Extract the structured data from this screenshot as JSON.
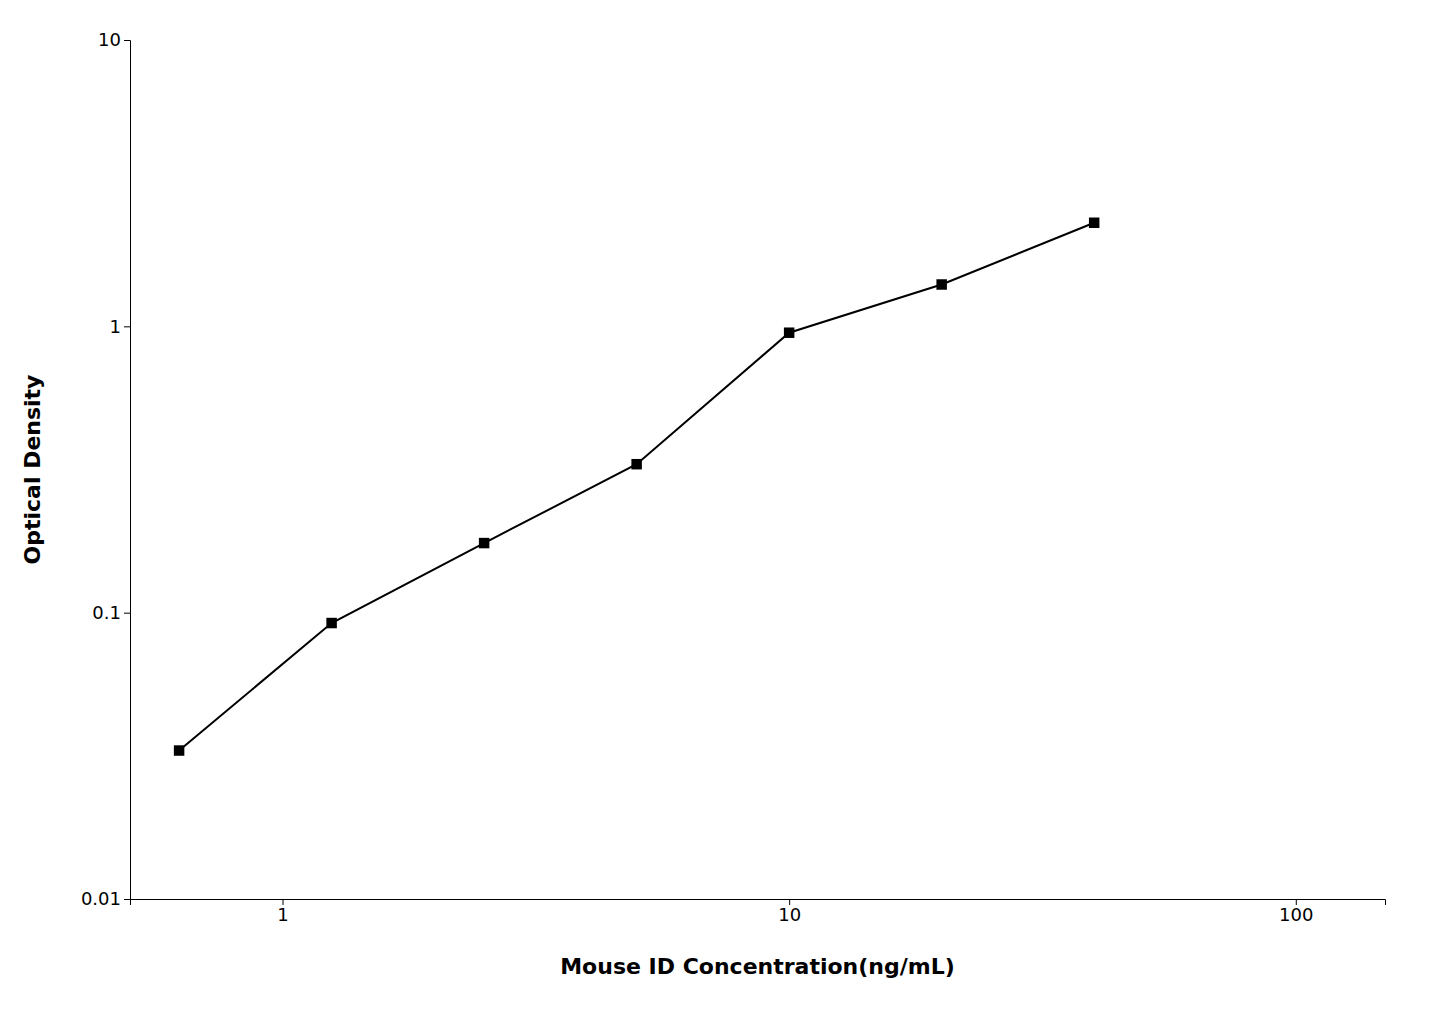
{
  "chart_data": {
    "type": "line",
    "x": [
      0.625,
      1.25,
      2.5,
      5.0,
      10.0,
      20.0,
      40.0
    ],
    "values": [
      0.033,
      0.092,
      0.175,
      0.33,
      0.95,
      1.4,
      2.3
    ],
    "xlabel": "Mouse ID Concentration(ng/mL)",
    "ylabel": "Optical Density",
    "color": "#000000",
    "marker": "square",
    "line_style": "solid",
    "log": true,
    "grid": false,
    "xlim": [
      0.5,
      150
    ],
    "ylim": [
      0.01,
      10
    ],
    "xticks": [
      1,
      10,
      100
    ],
    "yticks": [
      0.01,
      0.1,
      1,
      10
    ]
  }
}
